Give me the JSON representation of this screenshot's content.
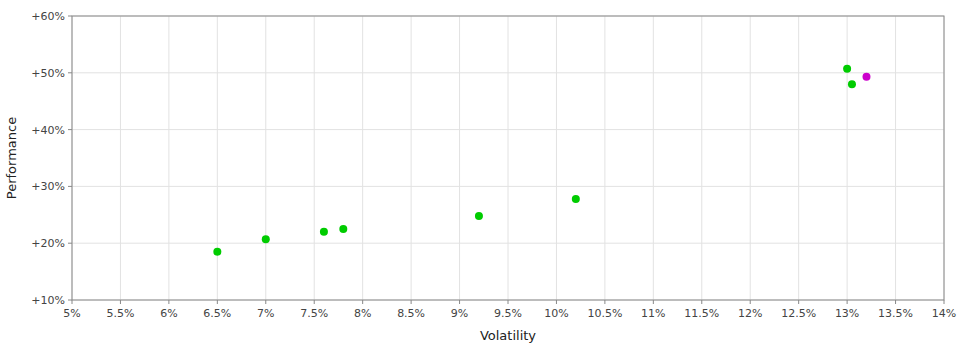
{
  "chart_data": {
    "type": "scatter",
    "xlabel": "Volatility",
    "ylabel": "Performance",
    "xlim": [
      0.05,
      0.14
    ],
    "ylim": [
      0.1,
      0.6
    ],
    "xticks": [
      {
        "value": 0.05,
        "label": "5%"
      },
      {
        "value": 0.055,
        "label": "5.5%"
      },
      {
        "value": 0.06,
        "label": "6%"
      },
      {
        "value": 0.065,
        "label": "6.5%"
      },
      {
        "value": 0.07,
        "label": "7%"
      },
      {
        "value": 0.075,
        "label": "7.5%"
      },
      {
        "value": 0.08,
        "label": "8%"
      },
      {
        "value": 0.085,
        "label": "8.5%"
      },
      {
        "value": 0.09,
        "label": "9%"
      },
      {
        "value": 0.095,
        "label": "9.5%"
      },
      {
        "value": 0.1,
        "label": "10%"
      },
      {
        "value": 0.105,
        "label": "10.5%"
      },
      {
        "value": 0.11,
        "label": "11%"
      },
      {
        "value": 0.115,
        "label": "11.5%"
      },
      {
        "value": 0.12,
        "label": "12%"
      },
      {
        "value": 0.125,
        "label": "12.5%"
      },
      {
        "value": 0.13,
        "label": "13%"
      },
      {
        "value": 0.135,
        "label": "13.5%"
      },
      {
        "value": 0.14,
        "label": "14%"
      }
    ],
    "yticks": [
      {
        "value": 0.1,
        "label": "+10%"
      },
      {
        "value": 0.2,
        "label": "+20%"
      },
      {
        "value": 0.3,
        "label": "+30%"
      },
      {
        "value": 0.4,
        "label": "+40%"
      },
      {
        "value": 0.5,
        "label": "+50%"
      },
      {
        "value": 0.6,
        "label": "+60%"
      }
    ],
    "grid": true,
    "series": [
      {
        "color": "#00cc00",
        "x": [
          0.065,
          0.07,
          0.076,
          0.078,
          0.092,
          0.102,
          0.13,
          0.1305
        ],
        "values": [
          0.185,
          0.207,
          0.22,
          0.225,
          0.248,
          0.278,
          0.507,
          0.48
        ]
      },
      {
        "color": "#cc00cc",
        "x": [
          0.132
        ],
        "values": [
          0.493
        ]
      }
    ]
  }
}
